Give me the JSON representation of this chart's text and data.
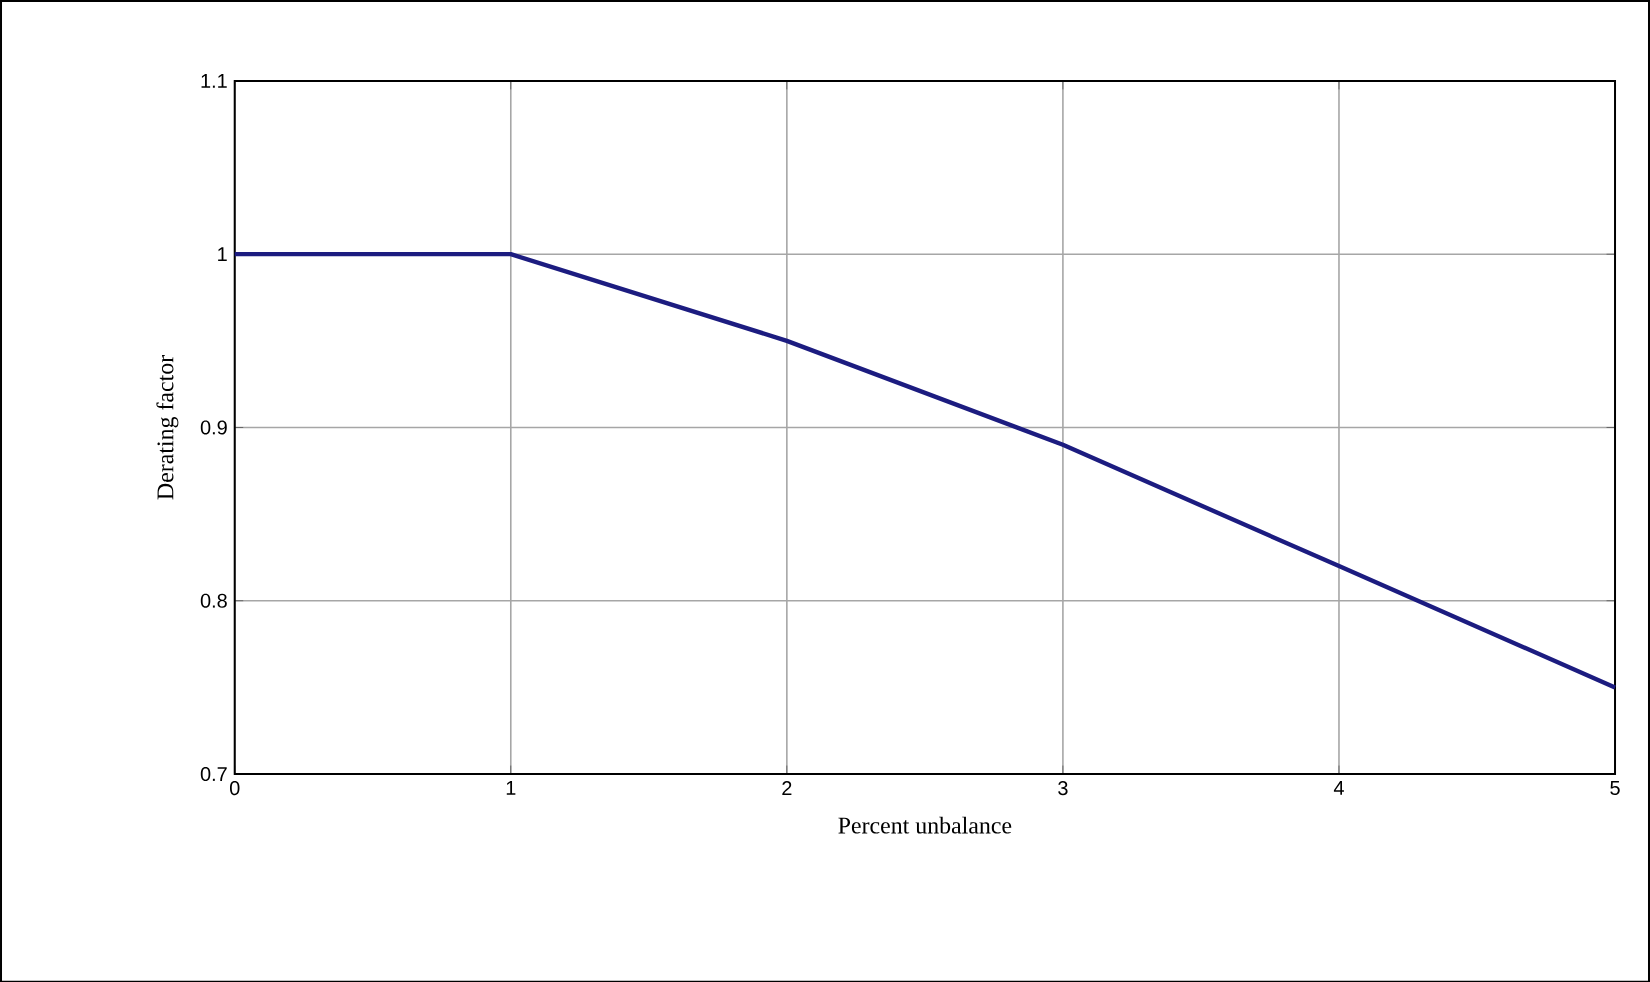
{
  "chart_data": {
    "type": "line",
    "xlabel": "Percent unbalance",
    "ylabel": "Derating factor",
    "x": [
      0,
      1,
      2,
      3,
      4,
      5
    ],
    "series": [
      {
        "color": "#1c1c80",
        "values": [
          1,
          1,
          0.95,
          0.89,
          0.82,
          0.75
        ]
      }
    ],
    "xlim": [
      0,
      5
    ],
    "xticks": [
      0,
      1,
      2,
      3,
      4,
      5
    ],
    "ylim": [
      0.7,
      1.1
    ],
    "yticks": [
      0.7,
      0.8,
      0.9,
      1,
      1.1
    ],
    "grid": true,
    "marker": "none",
    "line_style": "solid"
  }
}
